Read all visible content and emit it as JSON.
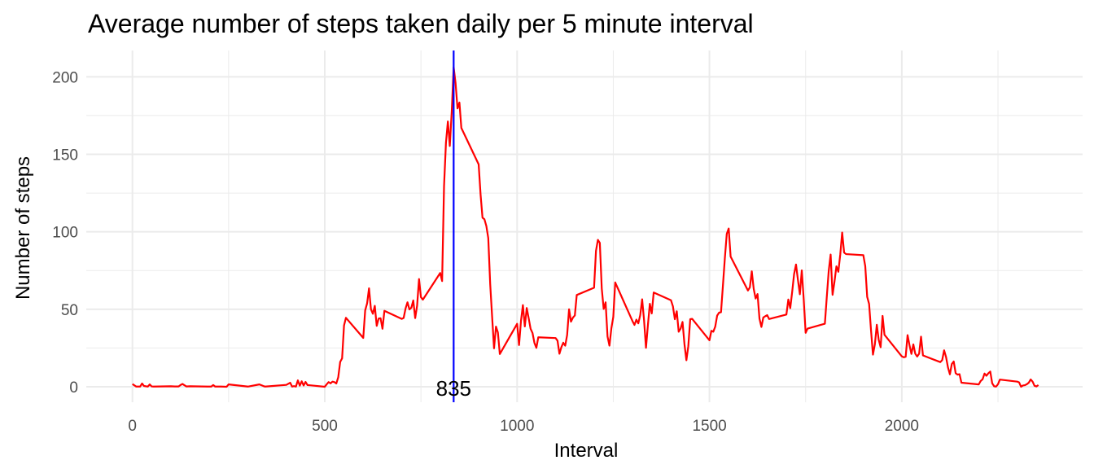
{
  "chart_data": {
    "type": "line",
    "title": "Average number of steps taken daily per 5 minute interval",
    "xlabel": "Interval",
    "ylabel": "Number of steps",
    "xlim": [
      -120,
      2470
    ],
    "ylim": [
      -10,
      217
    ],
    "x_ticks": [
      0,
      500,
      1000,
      1500,
      2000
    ],
    "y_ticks": [
      0,
      50,
      100,
      150,
      200
    ],
    "x_tick_labels": [
      "0",
      "500",
      "1000",
      "1500",
      "2000"
    ],
    "y_tick_labels": [
      "0",
      "50",
      "100",
      "150",
      "200"
    ],
    "grid": true,
    "legend": "none",
    "series": [
      {
        "color": "#ff0000",
        "points": [
          [
            0,
            1.7
          ],
          [
            10,
            0.1
          ],
          [
            20,
            0.1
          ],
          [
            25,
            2.1
          ],
          [
            30,
            0.5
          ],
          [
            40,
            0.1
          ],
          [
            45,
            1.5
          ],
          [
            50,
            0.2
          ],
          [
            55,
            0.1
          ],
          [
            100,
            0.3
          ],
          [
            110,
            0.2
          ],
          [
            120,
            0.2
          ],
          [
            125,
            1.1
          ],
          [
            130,
            1.8
          ],
          [
            140,
            0.2
          ],
          [
            150,
            0.3
          ],
          [
            200,
            0.1
          ],
          [
            205,
            0.1
          ],
          [
            210,
            1.1
          ],
          [
            215,
            0.1
          ],
          [
            230,
            0.1
          ],
          [
            245,
            0.0
          ],
          [
            250,
            1.5
          ],
          [
            300,
            0.1
          ],
          [
            330,
            1.5
          ],
          [
            340,
            0.5
          ],
          [
            345,
            0.1
          ],
          [
            400,
            1.2
          ],
          [
            410,
            2.6
          ],
          [
            415,
            0.1
          ],
          [
            420,
            0.4
          ],
          [
            425,
            0.1
          ],
          [
            430,
            4.1
          ],
          [
            435,
            0.7
          ],
          [
            440,
            3.5
          ],
          [
            445,
            0.8
          ],
          [
            450,
            3.1
          ],
          [
            455,
            1.1
          ],
          [
            500,
            0.0
          ],
          [
            505,
            1.6
          ],
          [
            510,
            3.0
          ],
          [
            515,
            2.2
          ],
          [
            520,
            3.3
          ],
          [
            525,
            3.0
          ],
          [
            530,
            2.1
          ],
          [
            535,
            6.1
          ],
          [
            540,
            16.0
          ],
          [
            545,
            18.3
          ],
          [
            550,
            39.5
          ],
          [
            555,
            44.5
          ],
          [
            600,
            31.5
          ],
          [
            605,
            49.3
          ],
          [
            610,
            53.8
          ],
          [
            615,
            63.5
          ],
          [
            620,
            50.0
          ],
          [
            625,
            47.1
          ],
          [
            630,
            52.2
          ],
          [
            635,
            39.3
          ],
          [
            640,
            44.0
          ],
          [
            645,
            44.2
          ],
          [
            650,
            37.4
          ],
          [
            655,
            49.0
          ],
          [
            700,
            43.8
          ],
          [
            705,
            44.4
          ],
          [
            710,
            50.5
          ],
          [
            715,
            54.5
          ],
          [
            720,
            49.9
          ],
          [
            725,
            51.0
          ],
          [
            730,
            55.7
          ],
          [
            735,
            44.3
          ],
          [
            740,
            52.3
          ],
          [
            745,
            69.5
          ],
          [
            750,
            57.8
          ],
          [
            755,
            56.2
          ],
          [
            800,
            73.4
          ],
          [
            805,
            68.2
          ],
          [
            810,
            129.4
          ],
          [
            815,
            157.5
          ],
          [
            820,
            171.2
          ],
          [
            825,
            155.4
          ],
          [
            830,
            177.3
          ],
          [
            835,
            206.2
          ],
          [
            840,
            195.9
          ],
          [
            845,
            179.6
          ],
          [
            850,
            183.4
          ],
          [
            855,
            167.0
          ],
          [
            900,
            143.5
          ],
          [
            905,
            124.0
          ],
          [
            910,
            109.1
          ],
          [
            915,
            108.1
          ],
          [
            920,
            103.7
          ],
          [
            925,
            95.9
          ],
          [
            930,
            66.2
          ],
          [
            935,
            45.2
          ],
          [
            940,
            24.8
          ],
          [
            945,
            38.8
          ],
          [
            950,
            35.0
          ],
          [
            955,
            21.1
          ],
          [
            1000,
            40.6
          ],
          [
            1005,
            26.9
          ],
          [
            1010,
            42.4
          ],
          [
            1015,
            52.7
          ],
          [
            1020,
            38.9
          ],
          [
            1025,
            50.8
          ],
          [
            1030,
            44.3
          ],
          [
            1035,
            37.4
          ],
          [
            1040,
            34.7
          ],
          [
            1045,
            28.3
          ],
          [
            1050,
            25.1
          ],
          [
            1055,
            31.9
          ],
          [
            1100,
            31.4
          ],
          [
            1105,
            29.7
          ],
          [
            1110,
            21.3
          ],
          [
            1115,
            25.5
          ],
          [
            1120,
            28.4
          ],
          [
            1125,
            26.5
          ],
          [
            1130,
            33.4
          ],
          [
            1135,
            50.0
          ],
          [
            1140,
            42.0
          ],
          [
            1145,
            44.6
          ],
          [
            1150,
            46.0
          ],
          [
            1155,
            59.2
          ],
          [
            1200,
            63.9
          ],
          [
            1205,
            87.7
          ],
          [
            1210,
            94.8
          ],
          [
            1215,
            92.8
          ],
          [
            1220,
            63.4
          ],
          [
            1225,
            50.2
          ],
          [
            1230,
            54.5
          ],
          [
            1235,
            32.4
          ],
          [
            1240,
            26.5
          ],
          [
            1245,
            37.7
          ],
          [
            1250,
            45.1
          ],
          [
            1255,
            67.3
          ],
          [
            1300,
            42.3
          ],
          [
            1305,
            39.9
          ],
          [
            1310,
            43.3
          ],
          [
            1315,
            40.9
          ],
          [
            1320,
            46.2
          ],
          [
            1325,
            56.4
          ],
          [
            1330,
            42.8
          ],
          [
            1335,
            25.1
          ],
          [
            1340,
            39.9
          ],
          [
            1345,
            53.5
          ],
          [
            1350,
            47.3
          ],
          [
            1355,
            60.8
          ],
          [
            1400,
            55.8
          ],
          [
            1405,
            51.9
          ],
          [
            1410,
            43.6
          ],
          [
            1415,
            48.7
          ],
          [
            1420,
            35.5
          ],
          [
            1425,
            37.5
          ],
          [
            1430,
            41.8
          ],
          [
            1435,
            27.5
          ],
          [
            1440,
            17.1
          ],
          [
            1445,
            26.2
          ],
          [
            1450,
            43.6
          ],
          [
            1455,
            43.8
          ],
          [
            1500,
            30.0
          ],
          [
            1505,
            36.1
          ],
          [
            1510,
            35.5
          ],
          [
            1515,
            38.8
          ],
          [
            1520,
            45.9
          ],
          [
            1525,
            47.8
          ],
          [
            1530,
            48.1
          ],
          [
            1535,
            65.3
          ],
          [
            1540,
            82.9
          ],
          [
            1545,
            98.7
          ],
          [
            1550,
            102.1
          ],
          [
            1555,
            84.0
          ],
          [
            1600,
            62.1
          ],
          [
            1605,
            64.1
          ],
          [
            1610,
            74.5
          ],
          [
            1615,
            63.2
          ],
          [
            1620,
            56.9
          ],
          [
            1625,
            59.8
          ],
          [
            1630,
            43.9
          ],
          [
            1635,
            38.6
          ],
          [
            1640,
            44.7
          ],
          [
            1645,
            45.5
          ],
          [
            1650,
            46.2
          ],
          [
            1655,
            43.7
          ],
          [
            1700,
            46.6
          ],
          [
            1705,
            56.3
          ],
          [
            1710,
            50.7
          ],
          [
            1715,
            61.2
          ],
          [
            1720,
            72.7
          ],
          [
            1725,
            78.9
          ],
          [
            1730,
            68.9
          ],
          [
            1735,
            59.7
          ],
          [
            1740,
            75.1
          ],
          [
            1745,
            56.5
          ],
          [
            1750,
            34.8
          ],
          [
            1755,
            37.5
          ],
          [
            1800,
            40.7
          ],
          [
            1805,
            58.0
          ],
          [
            1810,
            74.7
          ],
          [
            1815,
            85.3
          ],
          [
            1820,
            59.3
          ],
          [
            1825,
            67.8
          ],
          [
            1830,
            77.7
          ],
          [
            1835,
            74.2
          ],
          [
            1840,
            85.3
          ],
          [
            1845,
            99.5
          ],
          [
            1850,
            86.6
          ],
          [
            1855,
            85.6
          ],
          [
            1900,
            84.9
          ],
          [
            1905,
            77.8
          ],
          [
            1910,
            58.0
          ],
          [
            1915,
            53.4
          ],
          [
            1920,
            36.3
          ],
          [
            1925,
            20.7
          ],
          [
            1930,
            27.4
          ],
          [
            1935,
            40.0
          ],
          [
            1940,
            30.2
          ],
          [
            1945,
            25.5
          ],
          [
            1950,
            45.7
          ],
          [
            1955,
            33.5
          ],
          [
            2000,
            19.6
          ],
          [
            2005,
            19.0
          ],
          [
            2010,
            19.3
          ],
          [
            2015,
            33.3
          ],
          [
            2020,
            26.8
          ],
          [
            2025,
            21.2
          ],
          [
            2030,
            27.3
          ],
          [
            2035,
            21.3
          ],
          [
            2040,
            19.5
          ],
          [
            2045,
            21.3
          ],
          [
            2050,
            32.3
          ],
          [
            2055,
            20.2
          ],
          [
            2100,
            15.9
          ],
          [
            2105,
            17.2
          ],
          [
            2110,
            23.5
          ],
          [
            2115,
            19.2
          ],
          [
            2120,
            12.5
          ],
          [
            2125,
            8.0
          ],
          [
            2130,
            14.7
          ],
          [
            2135,
            16.3
          ],
          [
            2140,
            8.7
          ],
          [
            2145,
            7.8
          ],
          [
            2150,
            8.1
          ],
          [
            2155,
            2.6
          ],
          [
            2200,
            1.5
          ],
          [
            2205,
            3.7
          ],
          [
            2210,
            4.8
          ],
          [
            2215,
            8.5
          ],
          [
            2220,
            7.1
          ],
          [
            2225,
            8.7
          ],
          [
            2230,
            9.8
          ],
          [
            2235,
            2.2
          ],
          [
            2240,
            0.3
          ],
          [
            2245,
            0.1
          ],
          [
            2250,
            1.6
          ],
          [
            2255,
            4.6
          ],
          [
            2300,
            3.3
          ],
          [
            2305,
            2.8
          ],
          [
            2310,
            0.0
          ],
          [
            2315,
            0.8
          ],
          [
            2320,
            1.0
          ],
          [
            2325,
            1.6
          ],
          [
            2330,
            2.6
          ],
          [
            2335,
            4.7
          ],
          [
            2340,
            3.3
          ],
          [
            2345,
            0.6
          ],
          [
            2350,
            0.2
          ],
          [
            2355,
            1.1
          ]
        ]
      }
    ],
    "vline": {
      "x": 835,
      "color": "#0000ff"
    },
    "annotations": [
      {
        "text": "835",
        "x": 835,
        "y": 0
      }
    ]
  }
}
